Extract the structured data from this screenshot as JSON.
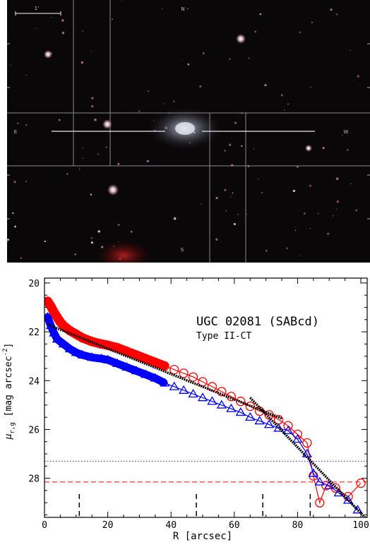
{
  "image": {
    "scale_label": "1'",
    "compass": {
      "top": "N",
      "left": "E",
      "right": "W",
      "bottom": "S"
    }
  },
  "chart_data": {
    "type": "scatter",
    "title": "UGC 02081 (SABcd)",
    "subtitle": "Type II-CT",
    "xlabel": "R [arcsec]",
    "ylabel_main": "μ",
    "ylabel_sub": "r,g",
    "ylabel_unit": "[mag arcsec",
    "ylabel_exp": "-2",
    "ylabel_close": "]",
    "xlim": [
      0,
      102
    ],
    "ylim": [
      29.6,
      19.8
    ],
    "y_inverted": true,
    "xticks": [
      0,
      20,
      40,
      60,
      80,
      100
    ],
    "yticks": [
      20,
      22,
      24,
      26,
      28
    ],
    "grid": false,
    "markers_x": [
      11,
      48,
      69,
      84
    ],
    "series": [
      {
        "color": "#ff0000",
        "marker": "circle",
        "x": [
          1,
          2,
          3,
          4,
          5,
          6,
          8,
          10,
          12,
          15,
          18,
          20,
          23,
          26,
          29,
          32,
          35,
          38,
          41,
          44,
          47,
          50,
          53,
          56,
          59,
          62,
          65,
          68,
          71,
          74,
          77,
          80,
          83,
          85,
          87,
          89,
          92,
          96,
          100
        ],
        "y": [
          20.75,
          20.95,
          21.2,
          21.4,
          21.6,
          21.75,
          21.95,
          22.1,
          22.25,
          22.4,
          22.5,
          22.55,
          22.65,
          22.8,
          22.95,
          23.1,
          23.25,
          23.4,
          23.55,
          23.7,
          23.85,
          24.05,
          24.25,
          24.45,
          24.65,
          24.85,
          25.05,
          25.25,
          25.4,
          25.6,
          25.85,
          26.2,
          26.55,
          27.9,
          29.0,
          28.3,
          28.4,
          28.75,
          28.2
        ]
      },
      {
        "color": "#0000ff",
        "marker": "triangle",
        "x": [
          1,
          2,
          3,
          4,
          6,
          8,
          10,
          12,
          15,
          18,
          20,
          23,
          26,
          29,
          32,
          35,
          38,
          41,
          44,
          47,
          50,
          53,
          56,
          59,
          62,
          65,
          68,
          71,
          74,
          77,
          80,
          83,
          85,
          87,
          90,
          93,
          96,
          99
        ],
        "y": [
          21.4,
          21.75,
          22.05,
          22.3,
          22.5,
          22.7,
          22.85,
          22.95,
          23.05,
          23.1,
          23.15,
          23.3,
          23.45,
          23.6,
          23.75,
          23.9,
          24.1,
          24.25,
          24.4,
          24.55,
          24.7,
          24.85,
          25.0,
          25.15,
          25.3,
          25.5,
          25.65,
          25.8,
          25.95,
          26.05,
          26.4,
          27.0,
          27.8,
          28.15,
          28.3,
          28.6,
          28.9,
          29.3
        ]
      }
    ],
    "fit_lines": [
      {
        "color": "#000000",
        "x": [
          1,
          75
        ],
        "y": [
          21.7,
          25.55
        ]
      },
      {
        "color": "#000000",
        "x": [
          65,
          102
        ],
        "y": [
          24.7,
          29.7
        ]
      }
    ],
    "hlines": [
      {
        "y": 27.3,
        "color": "#3333aa",
        "style": "dotted"
      },
      {
        "y": 28.15,
        "color": "#ff0000",
        "style": "dashed"
      }
    ]
  }
}
